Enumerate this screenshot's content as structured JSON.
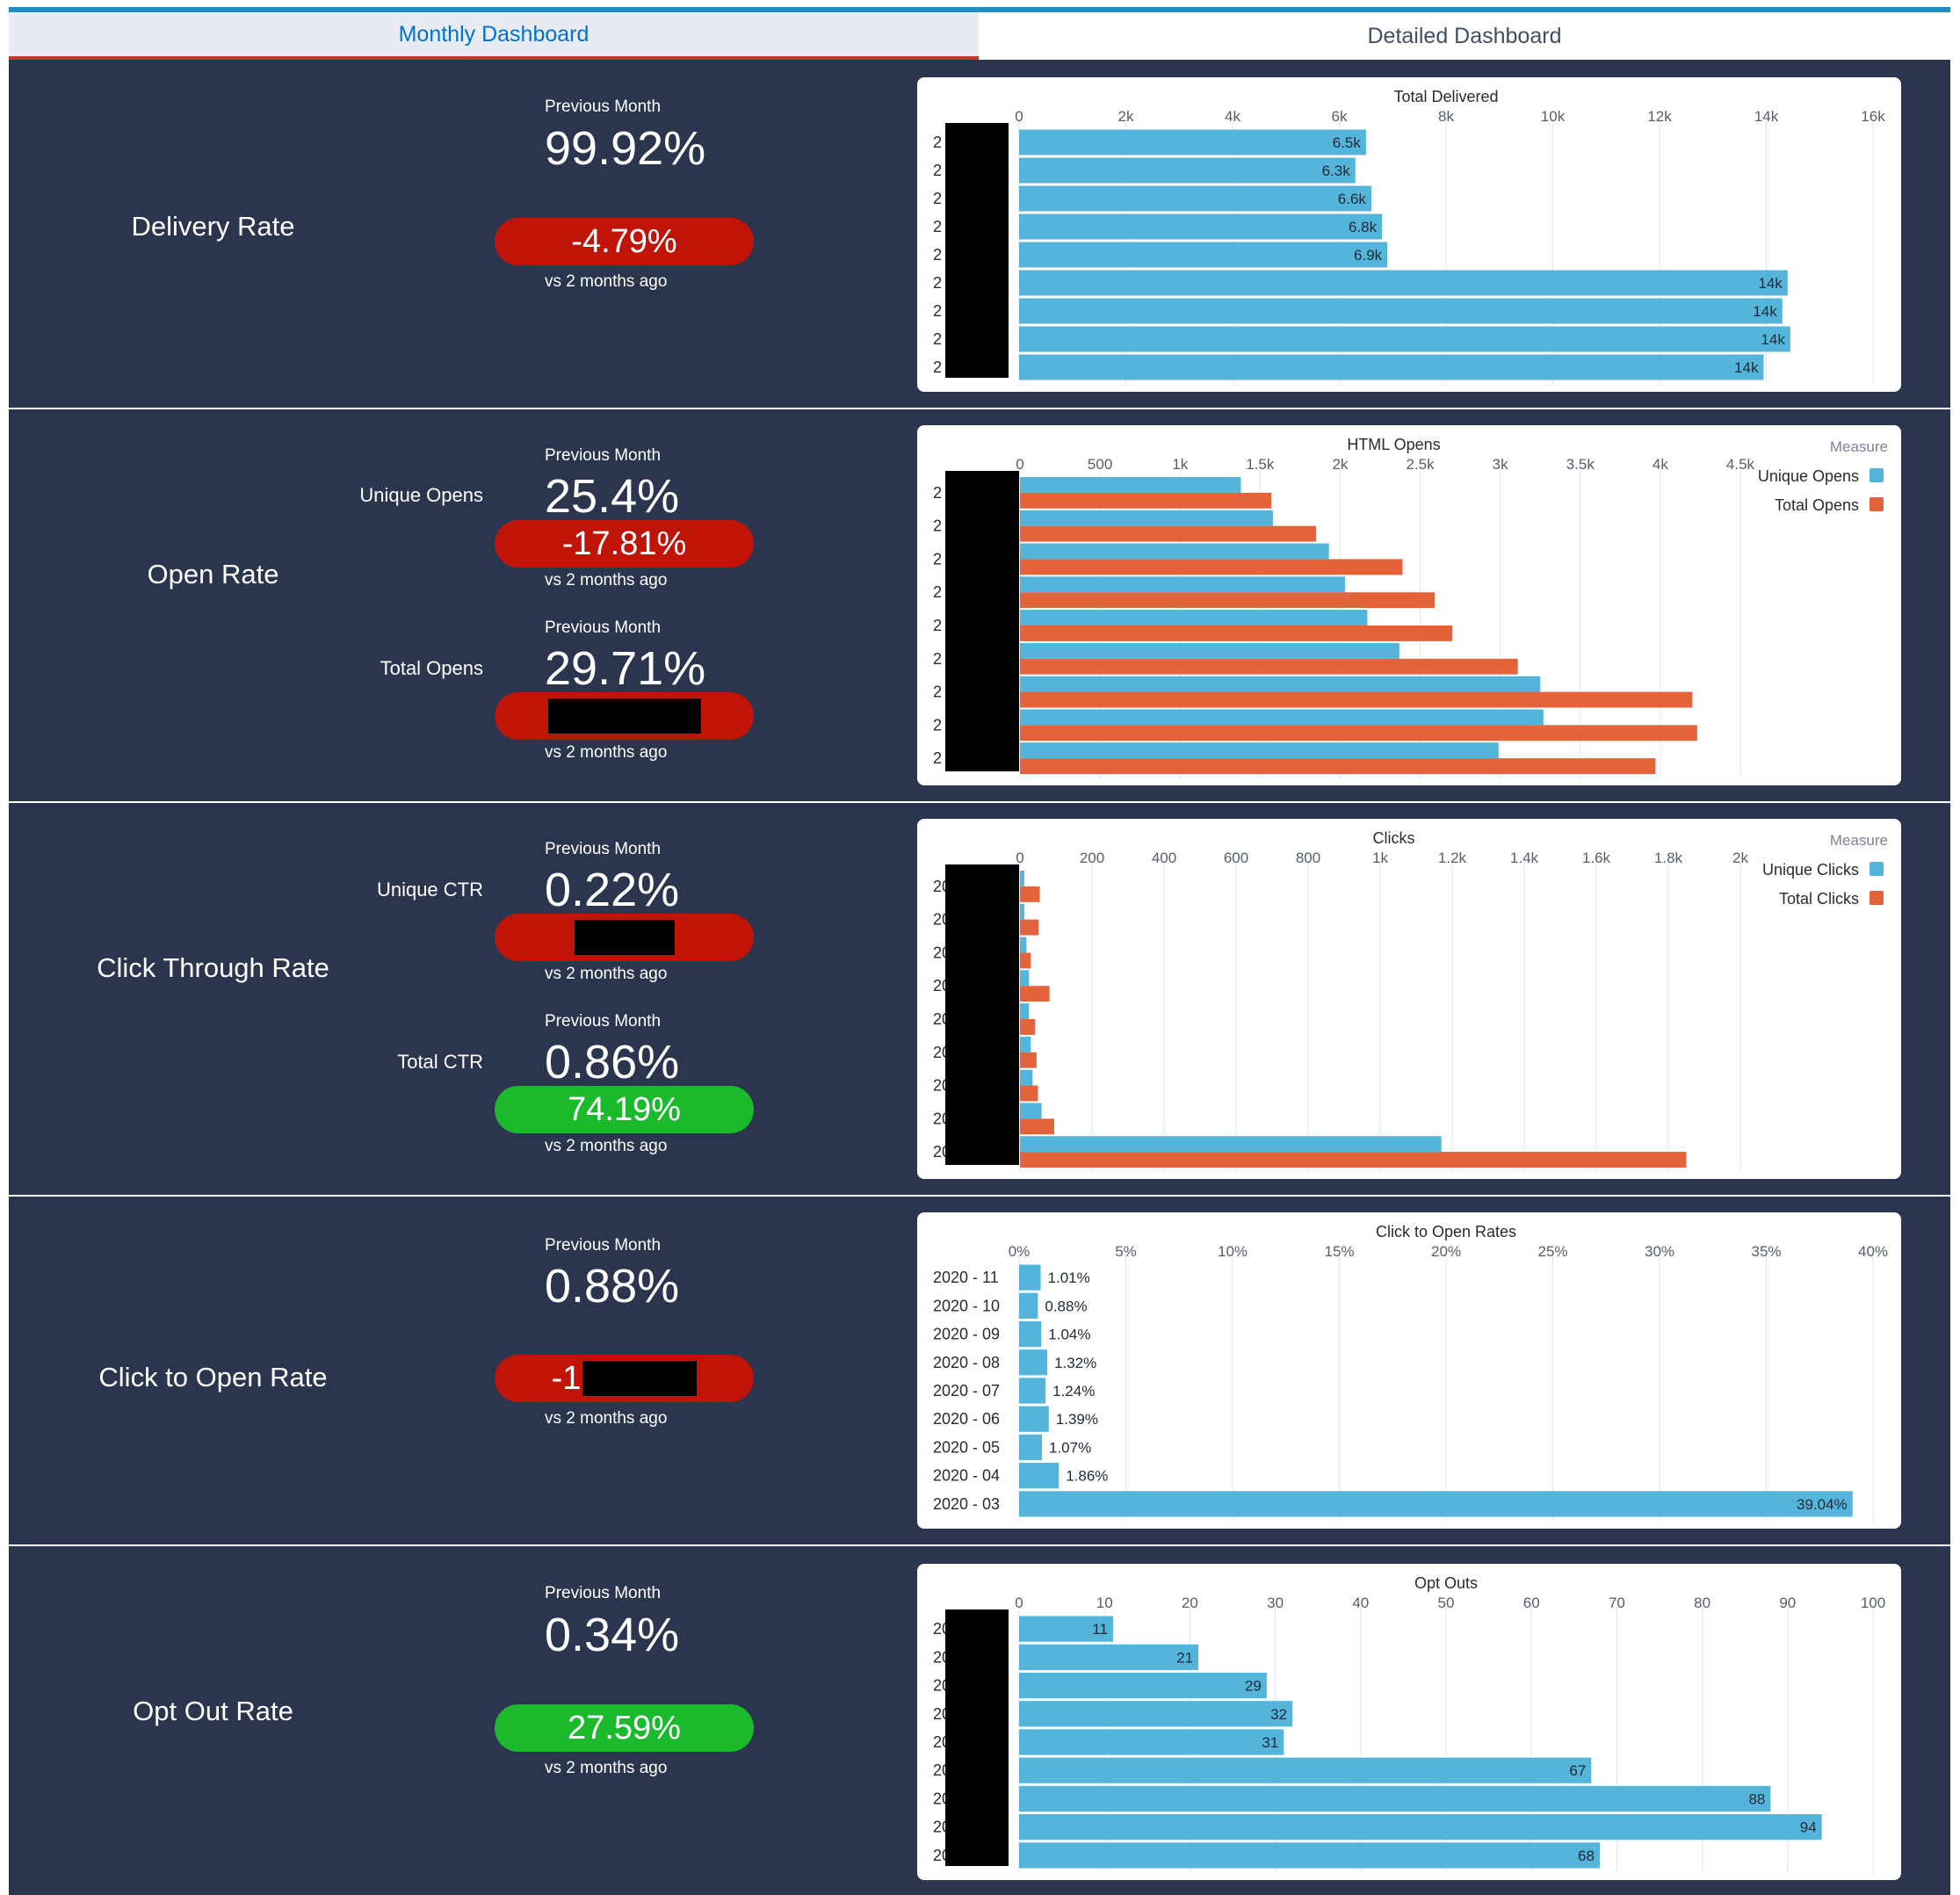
{
  "tabs": [
    {
      "label": "Monthly Dashboard",
      "active": true
    },
    {
      "label": "Detailed Dashboard",
      "active": false
    }
  ],
  "colors": {
    "background": "#2b354d",
    "blue_bar": "#54b4d9",
    "orange_bar": "#e4633a",
    "negative": "#c01409",
    "positive": "#1bba2d",
    "tab_accent": "#1f8fc2"
  },
  "sections": {
    "delivery": {
      "title": "Delivery Rate",
      "prev_label": "Previous Month",
      "value": "99.92%",
      "change": "-4.79%",
      "change_status": "negative",
      "vs_label": "vs 2 months ago"
    },
    "open": {
      "title": "Open Rate",
      "unique": {
        "label": "Unique Opens",
        "prev_label": "Previous Month",
        "value": "25.4%",
        "change": "-17.81%",
        "change_status": "negative",
        "vs_label": "vs 2 months ago"
      },
      "total": {
        "label": "Total Opens",
        "prev_label": "Previous Month",
        "value": "29.71%",
        "change": "",
        "change_status": "negative",
        "vs_label": "vs 2 months ago"
      }
    },
    "ctr": {
      "title": "Click Through Rate",
      "unique": {
        "label": "Unique CTR",
        "prev_label": "Previous Month",
        "value": "0.22%",
        "change": "",
        "change_status": "negative",
        "vs_label": "vs 2 months ago"
      },
      "total": {
        "label": "Total CTR",
        "prev_label": "Previous Month",
        "value": "0.86%",
        "change": "74.19%",
        "change_status": "positive",
        "vs_label": "vs 2 months ago"
      }
    },
    "cto": {
      "title": "Click to Open Rate",
      "prev_label": "Previous Month",
      "value": "0.88%",
      "change": "-1",
      "change_status": "negative",
      "vs_label": "vs 2 months ago"
    },
    "optout": {
      "title": "Opt Out Rate",
      "prev_label": "Previous Month",
      "value": "0.34%",
      "change": "27.59%",
      "change_status": "positive",
      "vs_label": "vs 2 months ago"
    }
  },
  "chart_data": [
    {
      "id": "total-delivered",
      "type": "bar",
      "orientation": "horizontal",
      "title": "Total Delivered",
      "xlim": [
        0,
        16000
      ],
      "ticks": [
        "0",
        "2k",
        "4k",
        "6k",
        "8k",
        "10k",
        "12k",
        "14k",
        "16k"
      ],
      "categories": [
        "2",
        "2",
        "2",
        "2",
        "2",
        "2",
        "2",
        "2",
        "2"
      ],
      "categories_redacted": true,
      "series": [
        {
          "name": "Total Delivered",
          "color": "#54b4d9",
          "values": [
            6500,
            6300,
            6600,
            6800,
            6900,
            14400,
            14300,
            14450,
            13950
          ],
          "labels": [
            "6.5k",
            "6.3k",
            "6.6k",
            "6.8k",
            "6.9k",
            "14k",
            "14k",
            "14k",
            "14k"
          ]
        }
      ]
    },
    {
      "id": "html-opens",
      "type": "bar",
      "orientation": "horizontal",
      "title": "HTML Opens",
      "legend_title": "Measure",
      "legend_position": "top-right",
      "xlim": [
        0,
        4500
      ],
      "ticks": [
        "0",
        "500",
        "1k",
        "1.5k",
        "2k",
        "2.5k",
        "3k",
        "3.5k",
        "4k",
        "4.5k"
      ],
      "categories": [
        "2",
        "2",
        "2",
        "2",
        "2",
        "2",
        "2",
        "2",
        "2"
      ],
      "categories_redacted": true,
      "series": [
        {
          "name": "Unique Opens",
          "color": "#54b4d9",
          "values": [
            1380,
            1580,
            1930,
            2030,
            2170,
            2370,
            3250,
            3270,
            2990
          ]
        },
        {
          "name": "Total Opens",
          "color": "#e4633a",
          "values": [
            1570,
            1850,
            2390,
            2590,
            2700,
            3110,
            4200,
            4230,
            3970
          ]
        }
      ]
    },
    {
      "id": "clicks",
      "type": "bar",
      "orientation": "horizontal",
      "title": "Clicks",
      "legend_title": "Measure",
      "legend_position": "top-right",
      "xlim": [
        0,
        2000
      ],
      "ticks": [
        "0",
        "200",
        "400",
        "600",
        "800",
        "1k",
        "1.2k",
        "1.4k",
        "1.6k",
        "1.8k",
        "2k"
      ],
      "categories": [
        "20",
        "20",
        "20",
        "20",
        "20",
        "20",
        "20",
        "20",
        "20"
      ],
      "categories_redacted": true,
      "series": [
        {
          "name": "Unique Clicks",
          "color": "#54b4d9",
          "values": [
            12,
            12,
            18,
            25,
            25,
            30,
            35,
            60,
            1170
          ]
        },
        {
          "name": "Total Clicks",
          "color": "#e4633a",
          "values": [
            55,
            52,
            30,
            82,
            42,
            46,
            50,
            95,
            1850
          ]
        }
      ]
    },
    {
      "id": "click-to-open",
      "type": "bar",
      "orientation": "horizontal",
      "title": "Click to Open Rates",
      "xlim": [
        0,
        40
      ],
      "ticks": [
        "0%",
        "5%",
        "10%",
        "15%",
        "20%",
        "25%",
        "30%",
        "35%",
        "40%"
      ],
      "categories": [
        "2020 - 11",
        "2020 - 10",
        "2020 - 09",
        "2020 - 08",
        "2020 - 07",
        "2020 - 06",
        "2020 - 05",
        "2020 - 04",
        "2020 - 03"
      ],
      "categories_redacted": false,
      "series": [
        {
          "name": "Click to Open Rate",
          "color": "#54b4d9",
          "values": [
            1.01,
            0.88,
            1.04,
            1.32,
            1.24,
            1.39,
            1.07,
            1.86,
            39.04
          ],
          "labels": [
            "1.01%",
            "0.88%",
            "1.04%",
            "1.32%",
            "1.24%",
            "1.39%",
            "1.07%",
            "1.86%",
            "39.04%"
          ]
        }
      ]
    },
    {
      "id": "opt-outs",
      "type": "bar",
      "orientation": "horizontal",
      "title": "Opt Outs",
      "xlim": [
        0,
        100
      ],
      "ticks": [
        "0",
        "10",
        "20",
        "30",
        "40",
        "50",
        "60",
        "70",
        "80",
        "90",
        "100"
      ],
      "categories": [
        "20",
        "20",
        "20",
        "20",
        "20",
        "20",
        "20",
        "20",
        "20"
      ],
      "categories_redacted": true,
      "series": [
        {
          "name": "Opt Outs",
          "color": "#54b4d9",
          "values": [
            11,
            21,
            29,
            32,
            31,
            67,
            88,
            94,
            68
          ],
          "labels": [
            "11",
            "21",
            "29",
            "32",
            "31",
            "67",
            "88",
            "94",
            "68"
          ]
        }
      ]
    }
  ]
}
